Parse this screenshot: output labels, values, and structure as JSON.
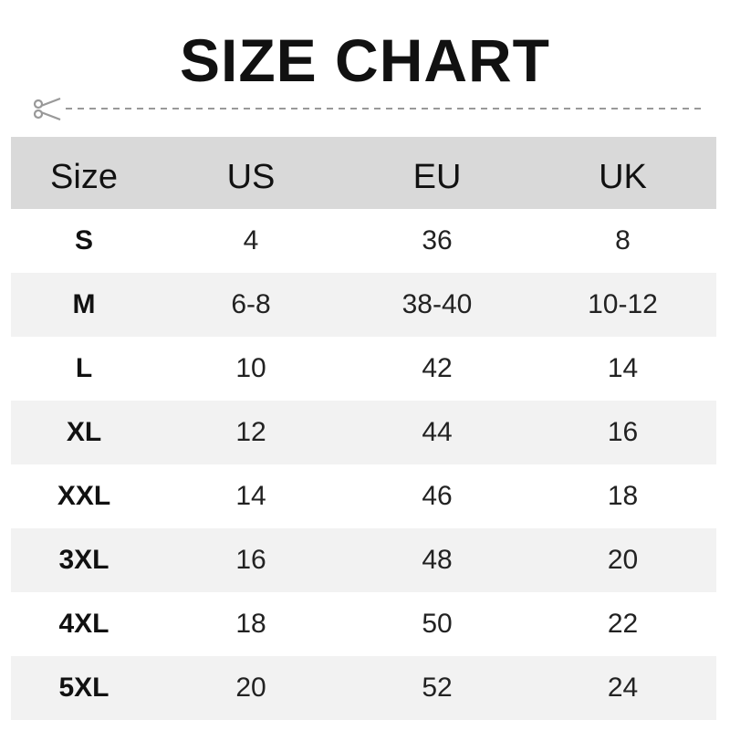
{
  "title": "SIZE CHART",
  "colors": {
    "header_bg": "#d9d9d9",
    "alt_row_bg": "#f2f2f2",
    "cut_line": "#999999"
  },
  "cut_icon": "scissors-icon",
  "table": {
    "headers": [
      "Size",
      "US",
      "EU",
      "UK"
    ],
    "rows": [
      [
        "S",
        "4",
        "36",
        "8"
      ],
      [
        "M",
        "6-8",
        "38-40",
        "10-12"
      ],
      [
        "L",
        "10",
        "42",
        "14"
      ],
      [
        "XL",
        "12",
        "44",
        "16"
      ],
      [
        "XXL",
        "14",
        "46",
        "18"
      ],
      [
        "3XL",
        "16",
        "48",
        "20"
      ],
      [
        "4XL",
        "18",
        "50",
        "22"
      ],
      [
        "5XL",
        "20",
        "52",
        "24"
      ]
    ]
  }
}
